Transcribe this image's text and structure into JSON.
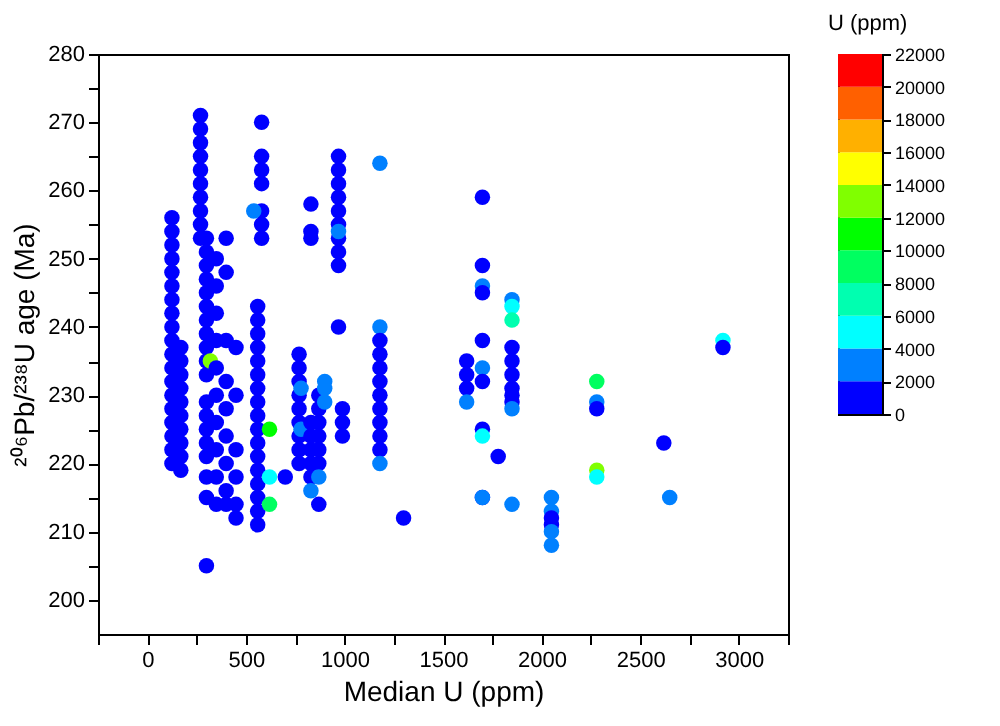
{
  "chart_data": {
    "type": "scatter",
    "xlabel": "Median U (ppm)",
    "ylabel": "²⁰⁶Pb/²³⁸U age (Ma)",
    "clabel": "U (ppm)",
    "xlim": [
      -250,
      3250
    ],
    "xticks": [
      {
        "value": -250,
        "label": null
      },
      0,
      {
        "value": 250,
        "label": null
      },
      500,
      {
        "value": 750,
        "label": null
      },
      1000,
      {
        "value": 1250,
        "label": null
      },
      1500,
      {
        "value": 1750,
        "label": null
      },
      2000,
      {
        "value": 2250,
        "label": null
      },
      2500,
      {
        "value": 2750,
        "label": null
      },
      3000,
      {
        "value": 3250,
        "label": null
      }
    ],
    "ylim": [
      195,
      280
    ],
    "yticks": [
      200,
      {
        "value": 205,
        "label": null
      },
      210,
      {
        "value": 215,
        "label": null
      },
      220,
      {
        "value": 225,
        "label": null
      },
      230,
      {
        "value": 235,
        "label": null
      },
      240,
      {
        "value": 245,
        "label": null
      },
      250,
      {
        "value": 255,
        "label": null
      },
      260,
      {
        "value": 265,
        "label": null
      },
      270,
      {
        "value": 275,
        "label": null
      },
      280
    ],
    "clim": [
      0,
      22000
    ],
    "cticks": [
      0,
      2000,
      4000,
      6000,
      8000,
      10000,
      12000,
      14000,
      16000,
      18000,
      20000,
      22000
    ],
    "grid": false,
    "series": [
      {
        "x": [
          125,
          125,
          125,
          125,
          125,
          125,
          125,
          125,
          125,
          125,
          125,
          125,
          125,
          125,
          125,
          125,
          125,
          125,
          125,
          170,
          170,
          170,
          170,
          170,
          170,
          170,
          170,
          170,
          170,
          270,
          270,
          270,
          270,
          270,
          270,
          270,
          270,
          270,
          270,
          300,
          300,
          300,
          300,
          300,
          300,
          300,
          300,
          300,
          300,
          300,
          300,
          300,
          300,
          300,
          300,
          300,
          300,
          300,
          320,
          350,
          350,
          350,
          350,
          350,
          350,
          350,
          350,
          350,
          350,
          400,
          400,
          400,
          400,
          400,
          400,
          400,
          400,
          400,
          450,
          450,
          450,
          450,
          450,
          450,
          560,
          560,
          560,
          560,
          560,
          560,
          560,
          560,
          560,
          560,
          560,
          560,
          560,
          560,
          560,
          560,
          560,
          580,
          580,
          580,
          580,
          580,
          580,
          580,
          540,
          620,
          620,
          620,
          700,
          770,
          770,
          770,
          770,
          770,
          770,
          770,
          770,
          770,
          780,
          780,
          830,
          830,
          830,
          830,
          830,
          830,
          830,
          830,
          830,
          870,
          870,
          870,
          870,
          870,
          870,
          870,
          870,
          900,
          900,
          900,
          970,
          970,
          970,
          970,
          970,
          970,
          970,
          970,
          970,
          970,
          970,
          990,
          990,
          990,
          1180,
          1180,
          1180,
          1180,
          1180,
          1180,
          1180,
          1180,
          1180,
          1180,
          1180,
          1180,
          1300,
          1620,
          1620,
          1620,
          1620,
          1700,
          1700,
          1700,
          1700,
          1700,
          1700,
          1700,
          1700,
          1700,
          1700,
          1700,
          1780,
          1850,
          1850,
          1850,
          1850,
          1850,
          1850,
          1850,
          1850,
          1850,
          1850,
          1850,
          2050,
          2050,
          2050,
          2050,
          2050,
          2050,
          2280,
          2280,
          2280,
          2280,
          2280,
          2620,
          2650,
          2920,
          2920
        ],
        "values": [
          256,
          254,
          252,
          250,
          248,
          246,
          244,
          242,
          240,
          238,
          236,
          234,
          232,
          230,
          228,
          226,
          224,
          222,
          220,
          237,
          235,
          233,
          231,
          229,
          227,
          225,
          223,
          221,
          219,
          271,
          269,
          267,
          265,
          263,
          261,
          259,
          257,
          255,
          253,
          253,
          251,
          249,
          247,
          245,
          243,
          241,
          239,
          237,
          235,
          233,
          229,
          227,
          225,
          223,
          221,
          218,
          215,
          205,
          235,
          250,
          246,
          242,
          238,
          234,
          230,
          226,
          222,
          218,
          214,
          253,
          248,
          238,
          232,
          228,
          224,
          220,
          216,
          214,
          237,
          230,
          222,
          218,
          214,
          212,
          243,
          241,
          239,
          237,
          235,
          233,
          231,
          229,
          227,
          225,
          223,
          221,
          219,
          217,
          215,
          213,
          211,
          270,
          265,
          263,
          261,
          257,
          255,
          253,
          257,
          225,
          214,
          218,
          218,
          236,
          234,
          232,
          230,
          228,
          226,
          224,
          222,
          220,
          231,
          225,
          226,
          224,
          222,
          220,
          218,
          216,
          258,
          254,
          253,
          230,
          228,
          226,
          224,
          222,
          220,
          218,
          214,
          232,
          231,
          229,
          265,
          263,
          261,
          259,
          257,
          255,
          253,
          251,
          249,
          254,
          240,
          228,
          226,
          224,
          264,
          240,
          238,
          236,
          234,
          232,
          230,
          228,
          226,
          224,
          222,
          220,
          212,
          235,
          233,
          231,
          229,
          259,
          249,
          246,
          245,
          238,
          234,
          232,
          225,
          224,
          215,
          215,
          221,
          244,
          243,
          241,
          237,
          235,
          233,
          231,
          230,
          229,
          228,
          214,
          215,
          213,
          212,
          211,
          210,
          208,
          232,
          229,
          228,
          219,
          218,
          223,
          215,
          238,
          237
        ],
        "cvalues": [
          1000,
          1000,
          1000,
          1000,
          1000,
          1000,
          1000,
          1000,
          1000,
          1000,
          1000,
          1000,
          1000,
          1000,
          1000,
          1000,
          1000,
          1000,
          1000,
          1000,
          1000,
          1000,
          1000,
          1000,
          1000,
          1000,
          1000,
          1000,
          1000,
          1000,
          1000,
          1000,
          1000,
          1000,
          1000,
          1000,
          1000,
          1000,
          1000,
          1000,
          1000,
          1000,
          1000,
          1000,
          1000,
          1000,
          1000,
          1000,
          1000,
          1000,
          1000,
          1000,
          1000,
          1000,
          1000,
          1000,
          1000,
          1000,
          13000,
          1000,
          1000,
          1000,
          1000,
          1000,
          1000,
          1000,
          1000,
          1000,
          1000,
          1000,
          1000,
          1000,
          1000,
          1000,
          1000,
          1000,
          1000,
          1000,
          1000,
          1000,
          1000,
          1000,
          1000,
          1000,
          1000,
          1000,
          1000,
          1000,
          1000,
          1000,
          1000,
          1000,
          1000,
          1000,
          1000,
          1000,
          1000,
          1000,
          1000,
          1000,
          1000,
          1000,
          1000,
          1000,
          1000,
          1000,
          1000,
          1000,
          3000,
          11000,
          9000,
          5000,
          1000,
          1000,
          1000,
          1000,
          1000,
          1000,
          1000,
          1000,
          1000,
          1000,
          3000,
          3000,
          1000,
          1000,
          1000,
          1000,
          1000,
          3000,
          1000,
          1000,
          1000,
          1000,
          1000,
          1000,
          1000,
          1000,
          1000,
          3000,
          1000,
          3000,
          3000,
          3000,
          1000,
          1000,
          1000,
          1000,
          1000,
          1000,
          1000,
          1000,
          1000,
          3000,
          1000,
          1000,
          1000,
          1000,
          3000,
          3000,
          1000,
          1000,
          1000,
          1000,
          1000,
          1000,
          1000,
          1000,
          1000,
          3000,
          1000,
          1000,
          1000,
          1000,
          3000,
          1000,
          1000,
          3000,
          1000,
          1000,
          3000,
          1000,
          1000,
          5000,
          1000,
          3000,
          1000,
          3000,
          5000,
          7000,
          1000,
          1000,
          1000,
          1000,
          1000,
          1000,
          3000,
          3000,
          3000,
          3000,
          1000,
          1000,
          3000,
          3000,
          9000,
          3000,
          1000,
          13000,
          5000,
          1000,
          3000,
          5000,
          1000
        ]
      }
    ]
  }
}
